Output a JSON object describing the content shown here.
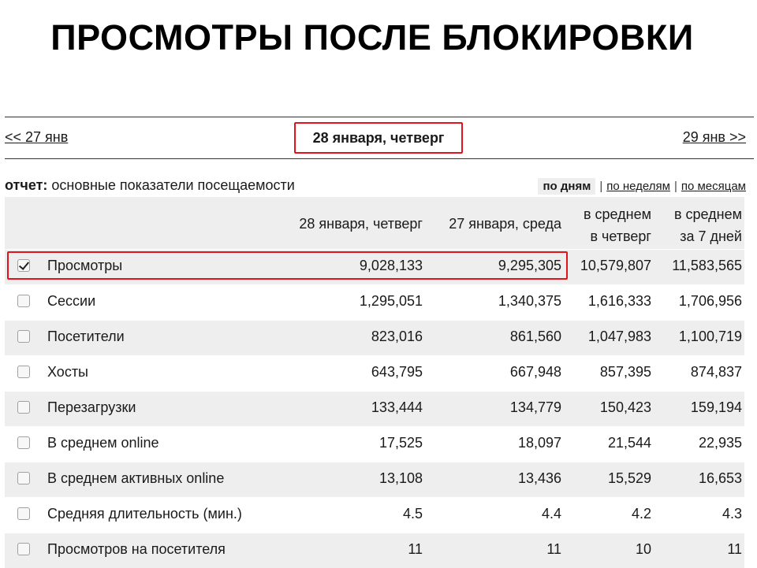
{
  "title": "ПРОСМОТРЫ ПОСЛЕ БЛОКИРОВКИ",
  "nav": {
    "prev": "<< 27 янв",
    "current": "28 января, четверг",
    "next": "29 янв >>"
  },
  "report": {
    "label": "отчет:",
    "name": "основные показатели посещаемости"
  },
  "periods": {
    "active": "по дням",
    "weeks": "по неделям",
    "months": "по месяцам",
    "separator": "|"
  },
  "table": {
    "headers": {
      "col1": "28 января, четверг",
      "col2": "27 января, среда",
      "col3_line1": "в среднем",
      "col3_line2": "в четверг",
      "col4_line1": "в среднем",
      "col4_line2": "за 7 дней"
    },
    "rows": [
      {
        "label": "Просмотры",
        "checked": true,
        "v1": "9,028,133",
        "v2": "9,295,305",
        "v3": "10,579,807",
        "v4": "11,583,565"
      },
      {
        "label": "Сессии",
        "checked": false,
        "v1": "1,295,051",
        "v2": "1,340,375",
        "v3": "1,616,333",
        "v4": "1,706,956"
      },
      {
        "label": "Посетители",
        "checked": false,
        "v1": "823,016",
        "v2": "861,560",
        "v3": "1,047,983",
        "v4": "1,100,719"
      },
      {
        "label": "Хосты",
        "checked": false,
        "v1": "643,795",
        "v2": "667,948",
        "v3": "857,395",
        "v4": "874,837"
      },
      {
        "label": "Перезагрузки",
        "checked": false,
        "v1": "133,444",
        "v2": "134,779",
        "v3": "150,423",
        "v4": "159,194"
      },
      {
        "label": "В среднем online",
        "checked": false,
        "v1": "17,525",
        "v2": "18,097",
        "v3": "21,544",
        "v4": "22,935"
      },
      {
        "label": "В среднем активных online",
        "checked": false,
        "v1": "13,108",
        "v2": "13,436",
        "v3": "15,529",
        "v4": "16,653"
      },
      {
        "label": "Средняя длительность (мин.)",
        "checked": false,
        "v1": "4.5",
        "v2": "4.4",
        "v3": "4.2",
        "v4": "4.3"
      },
      {
        "label": "Просмотров на посетителя",
        "checked": false,
        "v1": "11",
        "v2": "11",
        "v3": "10",
        "v4": "11"
      }
    ]
  }
}
